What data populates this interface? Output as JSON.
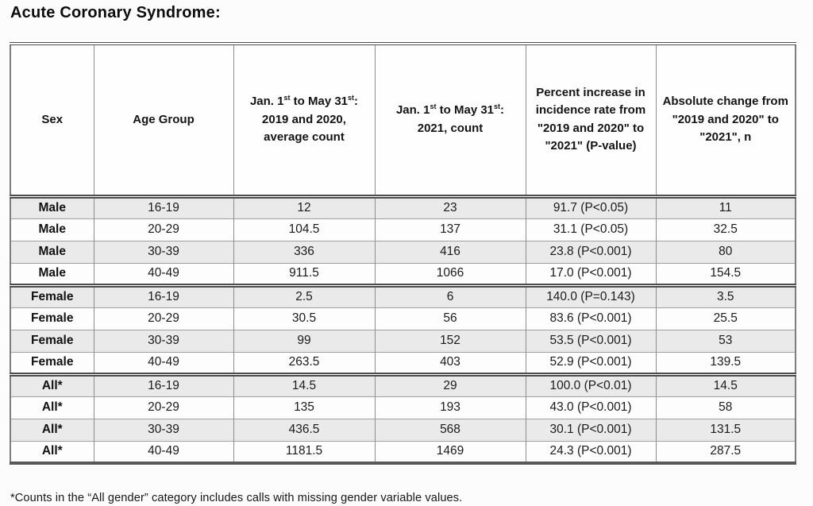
{
  "title": "Acute Coronary Syndrome:",
  "table": {
    "column_headers": [
      "Sex",
      "Age Group",
      "Jan. 1^{st} to May 31^{st}: 2019 and 2020, average count",
      "Jan. 1^{st} to May 31^{st}: 2021, count",
      "Percent increase in incidence rate from \"2019 and 2020\" to \"2021\" (P-value)",
      "Absolute change from \"2019 and 2020\" to \"2021\", n"
    ],
    "groups": [
      {
        "name": "Male",
        "rows": [
          [
            "Male",
            "16-19",
            "12",
            "23",
            "91.7 (P<0.05)",
            "11"
          ],
          [
            "Male",
            "20-29",
            "104.5",
            "137",
            "31.1 (P<0.05)",
            "32.5"
          ],
          [
            "Male",
            "30-39",
            "336",
            "416",
            "23.8 (P<0.001)",
            "80"
          ],
          [
            "Male",
            "40-49",
            "911.5",
            "1066",
            "17.0 (P<0.001)",
            "154.5"
          ]
        ]
      },
      {
        "name": "Female",
        "rows": [
          [
            "Female",
            "16-19",
            "2.5",
            "6",
            "140.0 (P=0.143)",
            "3.5"
          ],
          [
            "Female",
            "20-29",
            "30.5",
            "56",
            "83.6 (P<0.001)",
            "25.5"
          ],
          [
            "Female",
            "30-39",
            "99",
            "152",
            "53.5 (P<0.001)",
            "53"
          ],
          [
            "Female",
            "40-49",
            "263.5",
            "403",
            "52.9 (P<0.001)",
            "139.5"
          ]
        ]
      },
      {
        "name": "All",
        "rows": [
          [
            "All*",
            "16-19",
            "14.5",
            "29",
            "100.0 (P<0.01)",
            "14.5"
          ],
          [
            "All*",
            "20-29",
            "135",
            "193",
            "43.0 (P<0.001)",
            "58"
          ],
          [
            "All*",
            "30-39",
            "436.5",
            "568",
            "30.1 (P<0.001)",
            "131.5"
          ],
          [
            "All*",
            "40-49",
            "1181.5",
            "1469",
            "24.3 (P<0.001)",
            "287.5"
          ]
        ]
      }
    ]
  },
  "footnote": "*Counts in the “All gender” category includes calls with missing gender variable values.",
  "colors": {
    "shaded_row": "#eaeaea",
    "separator_border": "#4d4d4d",
    "grid_line": "#8d8d8d",
    "text": "#1b1b1b"
  },
  "chart_data": {
    "type": "table",
    "title": "Acute Coronary Syndrome:",
    "columns": [
      "Sex",
      "Age Group",
      "Jan. 1st to May 31st: 2019 and 2020, average count",
      "Jan. 1st to May 31st: 2021, count",
      "Percent increase in incidence rate from \"2019 and 2020\" to \"2021\" (P-value)",
      "Absolute change from \"2019 and 2020\" to \"2021\", n"
    ],
    "rows": [
      [
        "Male",
        "16-19",
        12,
        23,
        "91.7 (P<0.05)",
        11
      ],
      [
        "Male",
        "20-29",
        104.5,
        137,
        "31.1 (P<0.05)",
        32.5
      ],
      [
        "Male",
        "30-39",
        336,
        416,
        "23.8 (P<0.001)",
        80
      ],
      [
        "Male",
        "40-49",
        911.5,
        1066,
        "17.0 (P<0.001)",
        154.5
      ],
      [
        "Female",
        "16-19",
        2.5,
        6,
        "140.0 (P=0.143)",
        3.5
      ],
      [
        "Female",
        "20-29",
        30.5,
        56,
        "83.6 (P<0.001)",
        25.5
      ],
      [
        "Female",
        "30-39",
        99,
        152,
        "53.5 (P<0.001)",
        53
      ],
      [
        "Female",
        "40-49",
        263.5,
        403,
        "52.9 (P<0.001)",
        139.5
      ],
      [
        "All*",
        "16-19",
        14.5,
        29,
        "100.0 (P<0.01)",
        14.5
      ],
      [
        "All*",
        "20-29",
        135,
        193,
        "43.0 (P<0.001)",
        58
      ],
      [
        "All*",
        "30-39",
        436.5,
        568,
        "30.1 (P<0.001)",
        131.5
      ],
      [
        "All*",
        "40-49",
        1181.5,
        1469,
        "24.3 (P<0.001)",
        287.5
      ]
    ]
  }
}
